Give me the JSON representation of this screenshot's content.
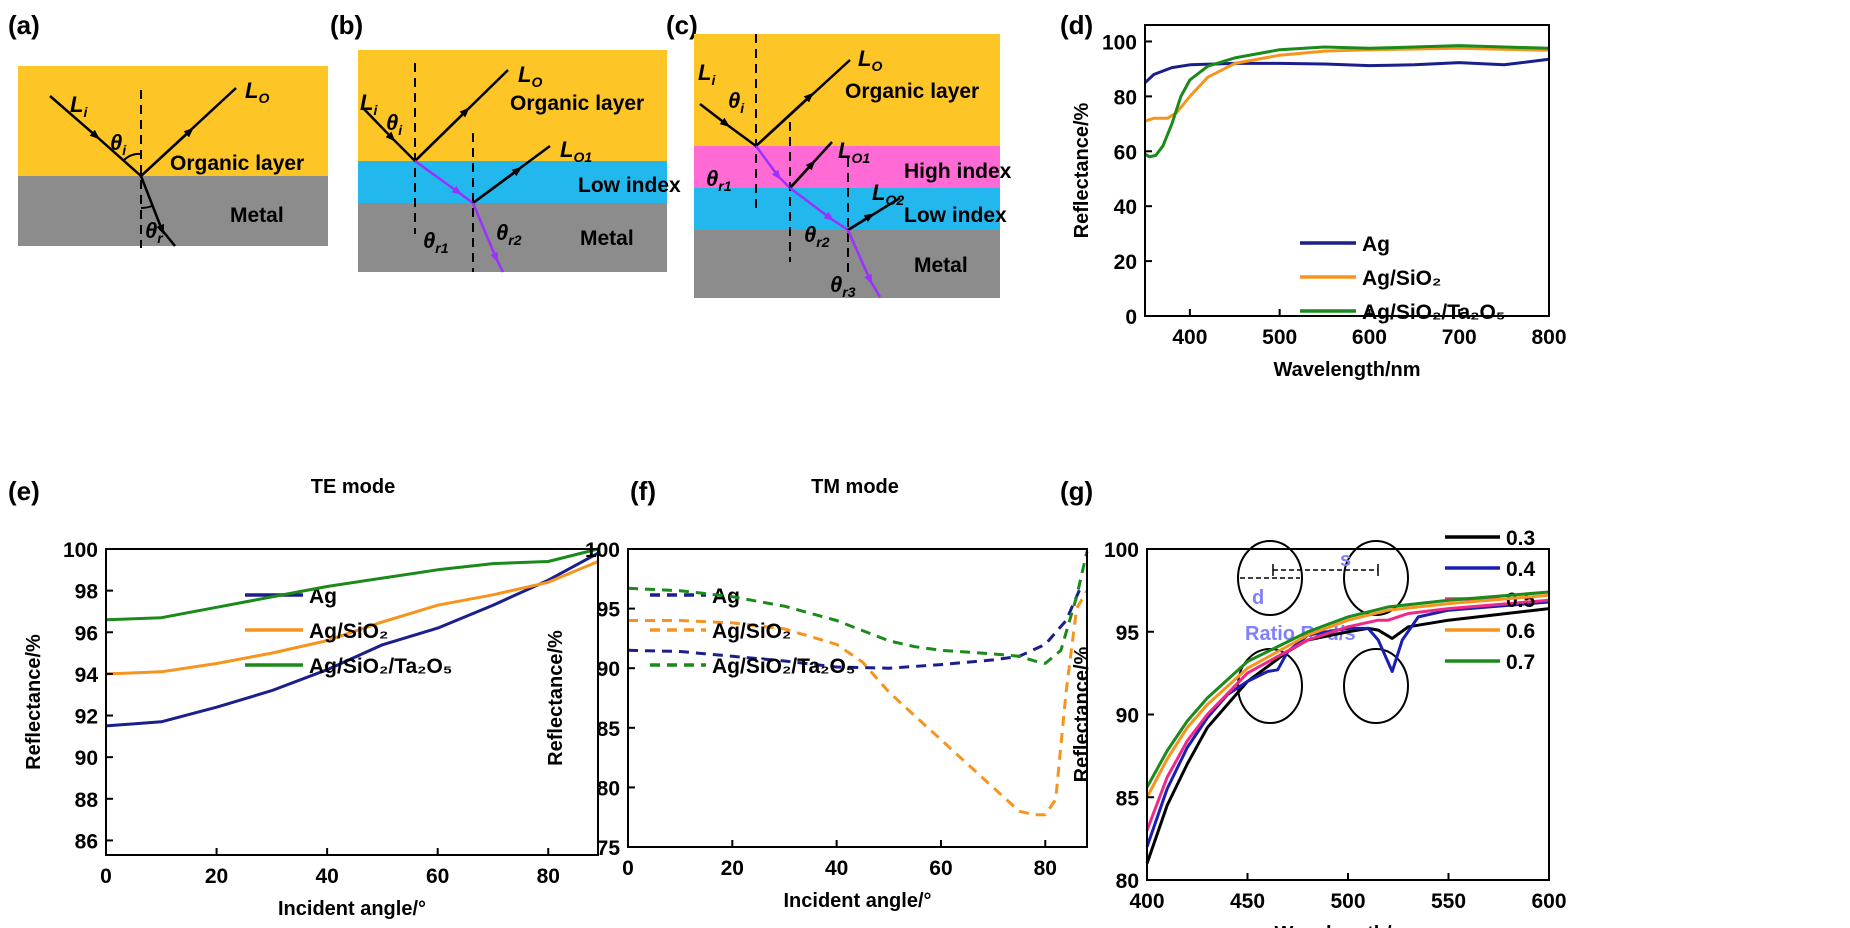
{
  "panels": {
    "a": "(a)",
    "b": "(b)",
    "c": "(c)",
    "d": "(d)",
    "e": "(e)",
    "f": "(f)",
    "g": "(g)"
  },
  "diagrams": {
    "layers": {
      "organic": "Organic layer",
      "low": "Low index",
      "high": "High index",
      "metal": "Metal"
    },
    "colors": {
      "organic": "#fdc526",
      "low": "#22b8ee",
      "high": "#ff6ad5",
      "metal": "#8c8c8c",
      "refracted": "#9b30ff"
    },
    "labels": {
      "Li": {
        "main": "L",
        "sub": "i"
      },
      "Lo": {
        "main": "L",
        "sub": "O"
      },
      "Lo1": {
        "main": "L",
        "sub": "O1"
      },
      "Lo2": {
        "main": "L",
        "sub": "O2"
      },
      "ti": {
        "main": "θ",
        "sub": "i"
      },
      "tr": {
        "main": "θ",
        "sub": "r"
      },
      "tr1": {
        "main": "θ",
        "sub": "r1"
      },
      "tr2": {
        "main": "θ",
        "sub": "r2"
      },
      "tr3": {
        "main": "θ",
        "sub": "r3"
      }
    }
  },
  "chart_data": [
    {
      "id": "d",
      "type": "line",
      "xlabel": "Wavelength/nm",
      "ylabel": "Reflectance/%",
      "xlim": [
        350,
        800
      ],
      "ylim": [
        0,
        106
      ],
      "xticks": [
        400,
        500,
        600,
        700,
        800
      ],
      "yticks": [
        0,
        20,
        40,
        60,
        80,
        100
      ],
      "legend": "center-right",
      "series": [
        {
          "name": "Ag",
          "color": "#1a1f8c",
          "x": [
            350,
            360,
            380,
            400,
            450,
            500,
            550,
            600,
            650,
            700,
            750,
            800
          ],
          "y": [
            85,
            88,
            90.5,
            91.5,
            92,
            92,
            91.8,
            91.2,
            91.5,
            92.3,
            91.5,
            93.5
          ]
        },
        {
          "name": "Ag/SiO₂",
          "color": "#f7941d",
          "x": [
            350,
            360,
            375,
            385,
            400,
            420,
            450,
            500,
            550,
            600,
            700,
            800
          ],
          "y": [
            71,
            72,
            72,
            74,
            80,
            87,
            92,
            95,
            96.5,
            97,
            97.5,
            96.8
          ]
        },
        {
          "name": "Ag/SiO₂/Ta₂O₅",
          "color": "#1a8a1a",
          "x": [
            350,
            355,
            362,
            370,
            380,
            390,
            400,
            420,
            450,
            500,
            550,
            600,
            700,
            800
          ],
          "y": [
            59,
            58,
            58.5,
            62,
            70,
            80,
            86,
            91,
            94,
            97,
            98,
            97.5,
            98.5,
            97.5
          ]
        }
      ]
    },
    {
      "id": "e",
      "type": "line",
      "title": "TE mode",
      "xlabel": "Incident angle/°",
      "ylabel": "Reflectance/%",
      "xlim": [
        0,
        89
      ],
      "ylim": [
        85.3,
        100
      ],
      "xticks": [
        0,
        20,
        40,
        60,
        80
      ],
      "yticks": [
        86,
        88,
        90,
        92,
        94,
        96,
        98,
        100
      ],
      "legend": "bottom-center",
      "series": [
        {
          "name": "Ag",
          "color": "#1a1f8c",
          "x": [
            0,
            10,
            20,
            30,
            40,
            50,
            60,
            70,
            80,
            89
          ],
          "y": [
            91.5,
            91.7,
            92.4,
            93.2,
            94.2,
            95.4,
            96.2,
            97.3,
            98.5,
            99.8
          ]
        },
        {
          "name": "Ag/SiO₂",
          "color": "#f7941d",
          "x": [
            0,
            10,
            20,
            30,
            40,
            50,
            60,
            70,
            80,
            89
          ],
          "y": [
            94,
            94.1,
            94.5,
            95,
            95.6,
            96.5,
            97.3,
            97.8,
            98.4,
            99.4
          ]
        },
        {
          "name": "Ag/SiO₂/Ta₂O₅",
          "color": "#1a8a1a",
          "x": [
            0,
            10,
            20,
            30,
            40,
            50,
            60,
            70,
            80,
            89
          ],
          "y": [
            96.6,
            96.7,
            97.2,
            97.7,
            98.2,
            98.6,
            99,
            99.3,
            99.4,
            100
          ]
        }
      ]
    },
    {
      "id": "f",
      "type": "line",
      "title": "TM mode",
      "xlabel": "Incident angle/°",
      "ylabel": "Reflectance/%",
      "xlim": [
        0,
        88
      ],
      "ylim": [
        75,
        100
      ],
      "xticks": [
        0,
        20,
        40,
        60,
        80
      ],
      "yticks": [
        75,
        80,
        85,
        90,
        95,
        100
      ],
      "legend": "bottom-left",
      "dashed": true,
      "series": [
        {
          "name": "Ag",
          "color": "#1a1f8c",
          "x": [
            0,
            10,
            20,
            30,
            40,
            50,
            60,
            70,
            75,
            80,
            84,
            87
          ],
          "y": [
            91.5,
            91.4,
            91,
            90.6,
            90.1,
            90,
            90.3,
            90.7,
            91,
            92,
            94,
            97
          ]
        },
        {
          "name": "Ag/SiO₂",
          "color": "#f7941d",
          "x": [
            0,
            10,
            20,
            30,
            40,
            45,
            50,
            55,
            60,
            65,
            70,
            75,
            78,
            80,
            82,
            84,
            86,
            88
          ],
          "y": [
            94,
            94,
            93.8,
            93.3,
            92,
            90.5,
            88,
            86,
            84,
            82,
            80,
            78,
            77.7,
            77.7,
            79,
            88,
            95,
            96.5
          ]
        },
        {
          "name": "Ag/SiO₂/Ta₂O₅",
          "color": "#1a8a1a",
          "x": [
            0,
            10,
            20,
            30,
            40,
            50,
            55,
            60,
            70,
            75,
            78,
            80,
            83,
            86,
            88
          ],
          "y": [
            96.7,
            96.5,
            96,
            95.2,
            94,
            92.3,
            91.8,
            91.5,
            91.2,
            91,
            90.6,
            90.4,
            91.5,
            96,
            99.8
          ]
        }
      ]
    },
    {
      "id": "g",
      "type": "line",
      "xlabel": "Wavelength/nm",
      "ylabel": "Reflectance/%",
      "xlim": [
        400,
        600
      ],
      "ylim": [
        80,
        100
      ],
      "xticks": [
        400,
        450,
        500,
        550,
        600
      ],
      "yticks": [
        80,
        85,
        90,
        95,
        100
      ],
      "legend": "right",
      "inset": {
        "s": "s",
        "d": "d",
        "ratio": "Ratio R=d/s",
        "color": "#8080ff"
      },
      "series": [
        {
          "name": "0.3",
          "color": "#000000",
          "x": [
            400,
            410,
            420,
            430,
            450,
            470,
            480,
            500,
            510,
            515,
            522,
            530,
            550,
            600
          ],
          "y": [
            81,
            84.5,
            87,
            89.2,
            92,
            93.8,
            94.5,
            95,
            95.2,
            95.1,
            94.6,
            95.3,
            95.7,
            96.4
          ]
        },
        {
          "name": "0.4",
          "color": "#1a1fb0",
          "x": [
            400,
            410,
            420,
            430,
            440,
            450,
            460,
            465,
            470,
            480,
            500,
            510,
            515,
            522,
            527,
            535,
            550,
            600
          ],
          "y": [
            82,
            85.5,
            88,
            89.8,
            91.2,
            92,
            92.6,
            92.7,
            93.8,
            94.8,
            95.2,
            95.2,
            94.5,
            92.6,
            94.5,
            95.9,
            96.3,
            96.8
          ]
        },
        {
          "name": "0.5",
          "color": "#f0288a",
          "x": [
            400,
            410,
            420,
            430,
            450,
            480,
            500,
            515,
            520,
            530,
            550,
            600
          ],
          "y": [
            83,
            86.2,
            88.4,
            90,
            92.5,
            94.5,
            95.3,
            95.7,
            95.7,
            96.1,
            96.4,
            96.9
          ]
        },
        {
          "name": "0.6",
          "color": "#f7941d",
          "x": [
            400,
            410,
            420,
            430,
            450,
            480,
            500,
            520,
            550,
            600
          ],
          "y": [
            85,
            87.3,
            89.2,
            90.6,
            92.8,
            94.8,
            95.7,
            96.3,
            96.7,
            97.2
          ]
        },
        {
          "name": "0.7",
          "color": "#1a8a1a",
          "x": [
            400,
            410,
            420,
            430,
            450,
            480,
            500,
            520,
            550,
            600
          ],
          "y": [
            85.6,
            87.8,
            89.6,
            91,
            93.2,
            95,
            95.9,
            96.5,
            96.9,
            97.4
          ]
        }
      ]
    }
  ]
}
